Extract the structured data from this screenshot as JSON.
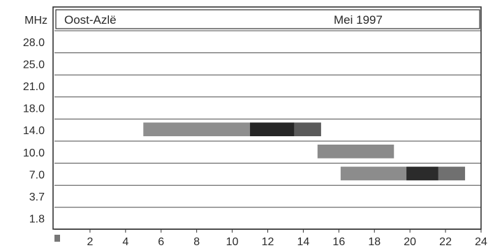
{
  "chart_data": {
    "type": "bar",
    "title_left": "Oost-Azlë",
    "title_right": "Mei 1997",
    "y_unit_label": "MHz",
    "y_categories": [
      "28.0",
      "25.0",
      "21.0",
      "18.0",
      "14.0",
      "10.0",
      "7.0",
      "3.7",
      "1.8"
    ],
    "x_ticks": [
      "2",
      "4",
      "6",
      "8",
      "10",
      "12",
      "14",
      "16",
      "18",
      "20",
      "22",
      "24"
    ],
    "xlim": [
      0,
      24
    ],
    "grid": true,
    "bands": [
      {
        "freq": "14.0",
        "start": 5.0,
        "end": 15.0,
        "segments": [
          {
            "start": 5.0,
            "end": 11.0,
            "shade": "#8e8e8e"
          },
          {
            "start": 11.0,
            "end": 13.5,
            "shade": "#262626"
          },
          {
            "start": 13.5,
            "end": 15.0,
            "shade": "#5a5a5a"
          }
        ]
      },
      {
        "freq": "10.0",
        "start": 14.8,
        "end": 19.1,
        "segments": [
          {
            "start": 14.8,
            "end": 19.1,
            "shade": "#8a8a8a"
          }
        ]
      },
      {
        "freq": "7.0",
        "start": 16.1,
        "end": 23.1,
        "segments": [
          {
            "start": 16.1,
            "end": 19.8,
            "shade": "#8c8c8c"
          },
          {
            "start": 19.8,
            "end": 21.6,
            "shade": "#2b2b2b"
          },
          {
            "start": 21.6,
            "end": 23.1,
            "shade": "#707070"
          }
        ]
      }
    ],
    "colors": {
      "frame": "#333333",
      "grid": "#4a4a4a",
      "text": "#2a2a2a"
    }
  }
}
